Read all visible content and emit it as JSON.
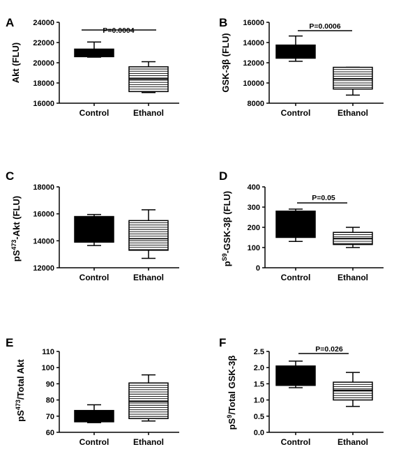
{
  "chart_data": [
    {
      "type": "box",
      "panel": "A",
      "ylabel": "Akt (FLU)",
      "ylim": [
        16000,
        24000
      ],
      "yticks": [
        "16000",
        "18000",
        "20000",
        "22000",
        "24000"
      ],
      "categories": [
        "Control",
        "Ethanol"
      ],
      "boxes": [
        {
          "category": "Control",
          "min": 20550,
          "q1": 20600,
          "median": 21000,
          "q3": 21350,
          "max": 22050
        },
        {
          "category": "Ethanol",
          "min": 17050,
          "q1": 17150,
          "median": 18400,
          "q3": 19600,
          "max": 20100
        }
      ],
      "annotation": "P=0.0004"
    },
    {
      "type": "box",
      "panel": "B",
      "ylabel": "GSK-3β (FLU)",
      "ylim": [
        8000,
        16000
      ],
      "yticks": [
        "8000",
        "10000",
        "12000",
        "14000",
        "16000"
      ],
      "categories": [
        "Control",
        "Ethanol"
      ],
      "boxes": [
        {
          "category": "Control",
          "min": 12150,
          "q1": 12450,
          "median": 13100,
          "q3": 13750,
          "max": 14650
        },
        {
          "category": "Ethanol",
          "min": 8800,
          "q1": 9400,
          "median": 10400,
          "q3": 11550,
          "max": 11550
        }
      ],
      "annotation": "P=0.0006"
    },
    {
      "type": "box",
      "panel": "C",
      "ylabel_prefix": "pS",
      "ylabel_sup": "473",
      "ylabel_suffix": "-Akt (FLU)",
      "ylim": [
        12000,
        18000
      ],
      "yticks": [
        "12000",
        "14000",
        "16000",
        "18000"
      ],
      "categories": [
        "Control",
        "Ethanol"
      ],
      "boxes": [
        {
          "category": "Control",
          "min": 13650,
          "q1": 13900,
          "median": 14950,
          "q3": 15800,
          "max": 15950
        },
        {
          "category": "Ethanol",
          "min": 12700,
          "q1": 13300,
          "median": 14150,
          "q3": 15500,
          "max": 16300
        }
      ],
      "annotation": ""
    },
    {
      "type": "box",
      "panel": "D",
      "ylabel_prefix": "p",
      "ylabel_sup": "S9",
      "ylabel_suffix": "-GSK-3β (FLU)",
      "ylim": [
        0,
        400
      ],
      "yticks": [
        "0",
        "100",
        "200",
        "300",
        "400"
      ],
      "categories": [
        "Control",
        "Ethanol"
      ],
      "boxes": [
        {
          "category": "Control",
          "min": 130,
          "q1": 150,
          "median": 200,
          "q3": 280,
          "max": 290
        },
        {
          "category": "Ethanol",
          "min": 100,
          "q1": 115,
          "median": 145,
          "q3": 175,
          "max": 200
        }
      ],
      "annotation": "P=0.05"
    },
    {
      "type": "box",
      "panel": "E",
      "ylabel_prefix": "pS",
      "ylabel_sup": "473",
      "ylabel_suffix": "/Total Akt",
      "ylim": [
        60,
        110
      ],
      "yticks": [
        "60",
        "70",
        "80",
        "90",
        "100",
        "110"
      ],
      "categories": [
        "Control",
        "Ethanol"
      ],
      "boxes": [
        {
          "category": "Control",
          "min": 66,
          "q1": 66.5,
          "median": 70,
          "q3": 73.5,
          "max": 77
        },
        {
          "category": "Ethanol",
          "min": 67,
          "q1": 68.5,
          "median": 79,
          "q3": 90.5,
          "max": 95.5
        }
      ],
      "annotation": ""
    },
    {
      "type": "box",
      "panel": "F",
      "ylabel_prefix": "pS",
      "ylabel_sup": "9",
      "ylabel_suffix": "/Total GSK-3β",
      "ylim": [
        0,
        2.5
      ],
      "yticks": [
        "0.0",
        "0.5",
        "1.0",
        "1.5",
        "2.0",
        "2.5"
      ],
      "categories": [
        "Control",
        "Ethanol"
      ],
      "boxes": [
        {
          "category": "Control",
          "min": 1.38,
          "q1": 1.45,
          "median": 1.75,
          "q3": 2.05,
          "max": 2.2
        },
        {
          "category": "Ethanol",
          "min": 0.8,
          "q1": 1.0,
          "median": 1.3,
          "q3": 1.55,
          "max": 1.85
        }
      ],
      "annotation": "P=0.026"
    }
  ]
}
